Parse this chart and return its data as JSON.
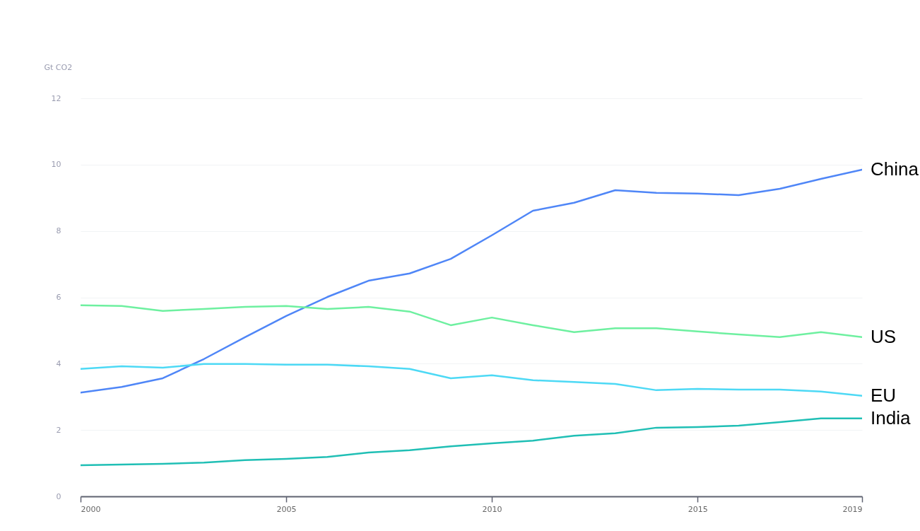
{
  "chart_data": {
    "type": "line",
    "ylabel": "Gt CO2",
    "x": [
      2000,
      2001,
      2002,
      2003,
      2004,
      2005,
      2006,
      2007,
      2008,
      2009,
      2010,
      2011,
      2012,
      2013,
      2014,
      2015,
      2016,
      2017,
      2018,
      2019
    ],
    "series": [
      {
        "name": "China",
        "color": "#4f86f7",
        "values": [
          3.13,
          3.3,
          3.56,
          4.14,
          4.8,
          5.44,
          6.01,
          6.5,
          6.72,
          7.16,
          7.87,
          8.61,
          8.85,
          9.23,
          9.15,
          9.13,
          9.08,
          9.27,
          9.57,
          9.85
        ]
      },
      {
        "name": "US",
        "color": "#6ef0a0",
        "values": [
          5.76,
          5.74,
          5.59,
          5.65,
          5.71,
          5.74,
          5.65,
          5.71,
          5.57,
          5.16,
          5.39,
          5.16,
          4.95,
          5.07,
          5.07,
          4.97,
          4.88,
          4.8,
          4.95,
          4.8
        ]
      },
      {
        "name": "EU",
        "color": "#4dd9f5",
        "values": [
          3.84,
          3.92,
          3.88,
          3.99,
          3.99,
          3.97,
          3.97,
          3.92,
          3.84,
          3.56,
          3.65,
          3.5,
          3.45,
          3.39,
          3.2,
          3.24,
          3.22,
          3.22,
          3.16,
          3.03
        ]
      },
      {
        "name": "India",
        "color": "#20bfb5",
        "values": [
          0.94,
          0.96,
          0.98,
          1.02,
          1.09,
          1.13,
          1.19,
          1.32,
          1.39,
          1.51,
          1.6,
          1.68,
          1.83,
          1.9,
          2.07,
          2.09,
          2.13,
          2.24,
          2.35,
          2.35
        ]
      }
    ],
    "xlim": [
      2000,
      2019
    ],
    "xticks": [
      2000,
      2005,
      2010,
      2015,
      2019
    ],
    "ylim": [
      0,
      12
    ],
    "yticks": [
      0,
      2,
      4,
      6,
      8,
      10,
      12
    ],
    "grid": "y",
    "legend": false,
    "marker": "none",
    "line_style": "solid"
  }
}
